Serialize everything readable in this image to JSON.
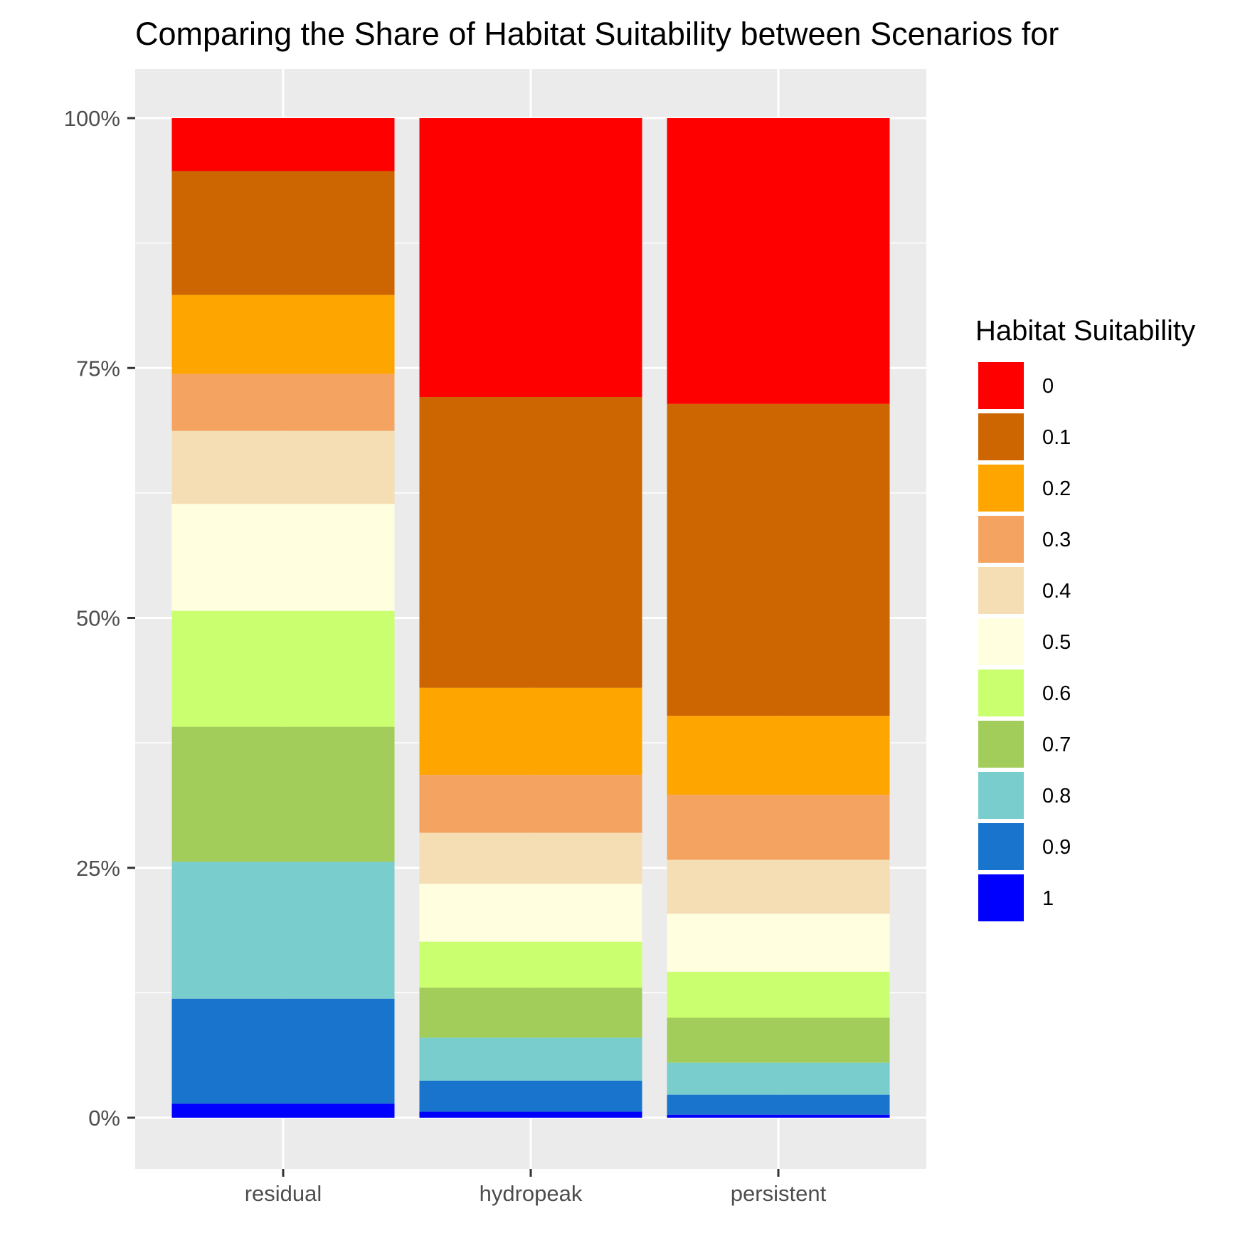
{
  "chart_data": {
    "type": "bar",
    "stacked": true,
    "percent": true,
    "title": "Comparing the Share of Habitat Suitability between Scenarios for",
    "xlabel": "",
    "ylabel": "",
    "categories": [
      "residual",
      "hydropeak",
      "persistent"
    ],
    "y_ticks": [
      "0%",
      "25%",
      "50%",
      "75%",
      "100%"
    ],
    "ylim": [
      0,
      1
    ],
    "grid": true,
    "legend": {
      "title": "Habitat Suitability",
      "position": "right"
    },
    "series": [
      {
        "name": "0",
        "color": "#FF0000",
        "values": [
          0.053,
          0.279,
          0.286
        ]
      },
      {
        "name": "0.1",
        "color": "#CD6600",
        "values": [
          0.124,
          0.291,
          0.312
        ]
      },
      {
        "name": "0.2",
        "color": "#FFA500",
        "values": [
          0.079,
          0.087,
          0.079
        ]
      },
      {
        "name": "0.3",
        "color": "#F4A460",
        "values": [
          0.057,
          0.058,
          0.065
        ]
      },
      {
        "name": "0.4",
        "color": "#F5DEB3",
        "values": [
          0.073,
          0.051,
          0.054
        ]
      },
      {
        "name": "0.5",
        "color": "#FFFFE0",
        "values": [
          0.107,
          0.058,
          0.058
        ]
      },
      {
        "name": "0.6",
        "color": "#CAFF70",
        "values": [
          0.116,
          0.046,
          0.046
        ]
      },
      {
        "name": "0.7",
        "color": "#A2CD5A",
        "values": [
          0.135,
          0.05,
          0.045
        ]
      },
      {
        "name": "0.8",
        "color": "#79CDCD",
        "values": [
          0.137,
          0.043,
          0.032
        ]
      },
      {
        "name": "0.9",
        "color": "#1874CD",
        "values": [
          0.105,
          0.031,
          0.02
        ]
      },
      {
        "name": "1",
        "color": "#0000FF",
        "values": [
          0.014,
          0.006,
          0.003
        ]
      }
    ]
  }
}
